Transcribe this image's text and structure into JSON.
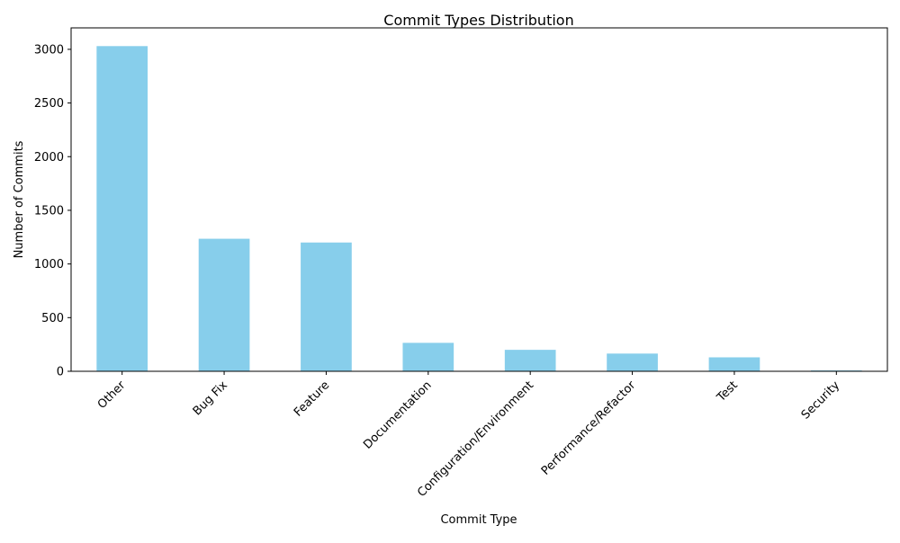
{
  "chart_data": {
    "type": "bar",
    "title": "Commit Types Distribution",
    "xlabel": "Commit Type",
    "ylabel": "Number of Commits",
    "categories": [
      "Other",
      "Bug Fix",
      "Feature",
      "Documentation",
      "Configuration/Environment",
      "Performance/Refactor",
      "Test",
      "Security"
    ],
    "values": [
      3030,
      1235,
      1200,
      265,
      200,
      165,
      130,
      8
    ],
    "ylim": [
      0,
      3200
    ],
    "yticks": [
      0,
      500,
      1000,
      1500,
      2000,
      2500,
      3000
    ],
    "bar_color": "#87ceeb",
    "grid": false,
    "legend": false
  }
}
